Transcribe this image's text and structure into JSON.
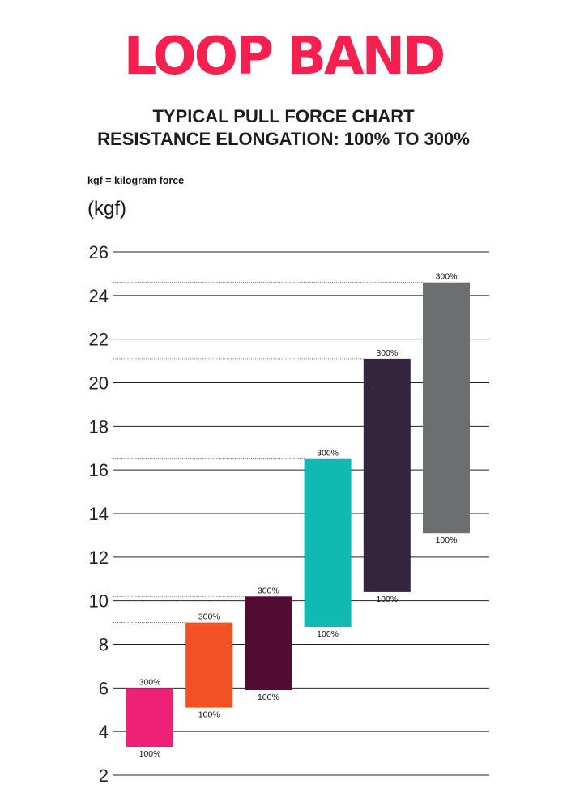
{
  "brand": {
    "name": "LOOP BAND",
    "color": "#f5204f"
  },
  "header": {
    "title_line1": "TYPICAL PULL FORCE CHART",
    "title_line2": "RESISTANCE ELONGATION: 100% TO 300%",
    "note": "kgf = kilogram force"
  },
  "chart_data": {
    "type": "bar",
    "ylabel": "(kgf)",
    "ylim": [
      2,
      26
    ],
    "yticks": [
      2,
      4,
      6,
      8,
      10,
      12,
      14,
      16,
      18,
      20,
      22,
      24,
      26
    ],
    "grid": true,
    "low_label": "100%",
    "high_label": "300%",
    "series": [
      {
        "low": 3.3,
        "high": 6.0,
        "color": "#ee2176"
      },
      {
        "low": 5.1,
        "high": 9.0,
        "color": "#f15124"
      },
      {
        "low": 5.9,
        "high": 10.2,
        "color": "#520c32"
      },
      {
        "low": 8.8,
        "high": 16.5,
        "color": "#10b9b1"
      },
      {
        "low": 10.4,
        "high": 21.1,
        "color": "#34243d"
      },
      {
        "low": 13.1,
        "high": 24.6,
        "color": "#6d6e70"
      }
    ]
  }
}
